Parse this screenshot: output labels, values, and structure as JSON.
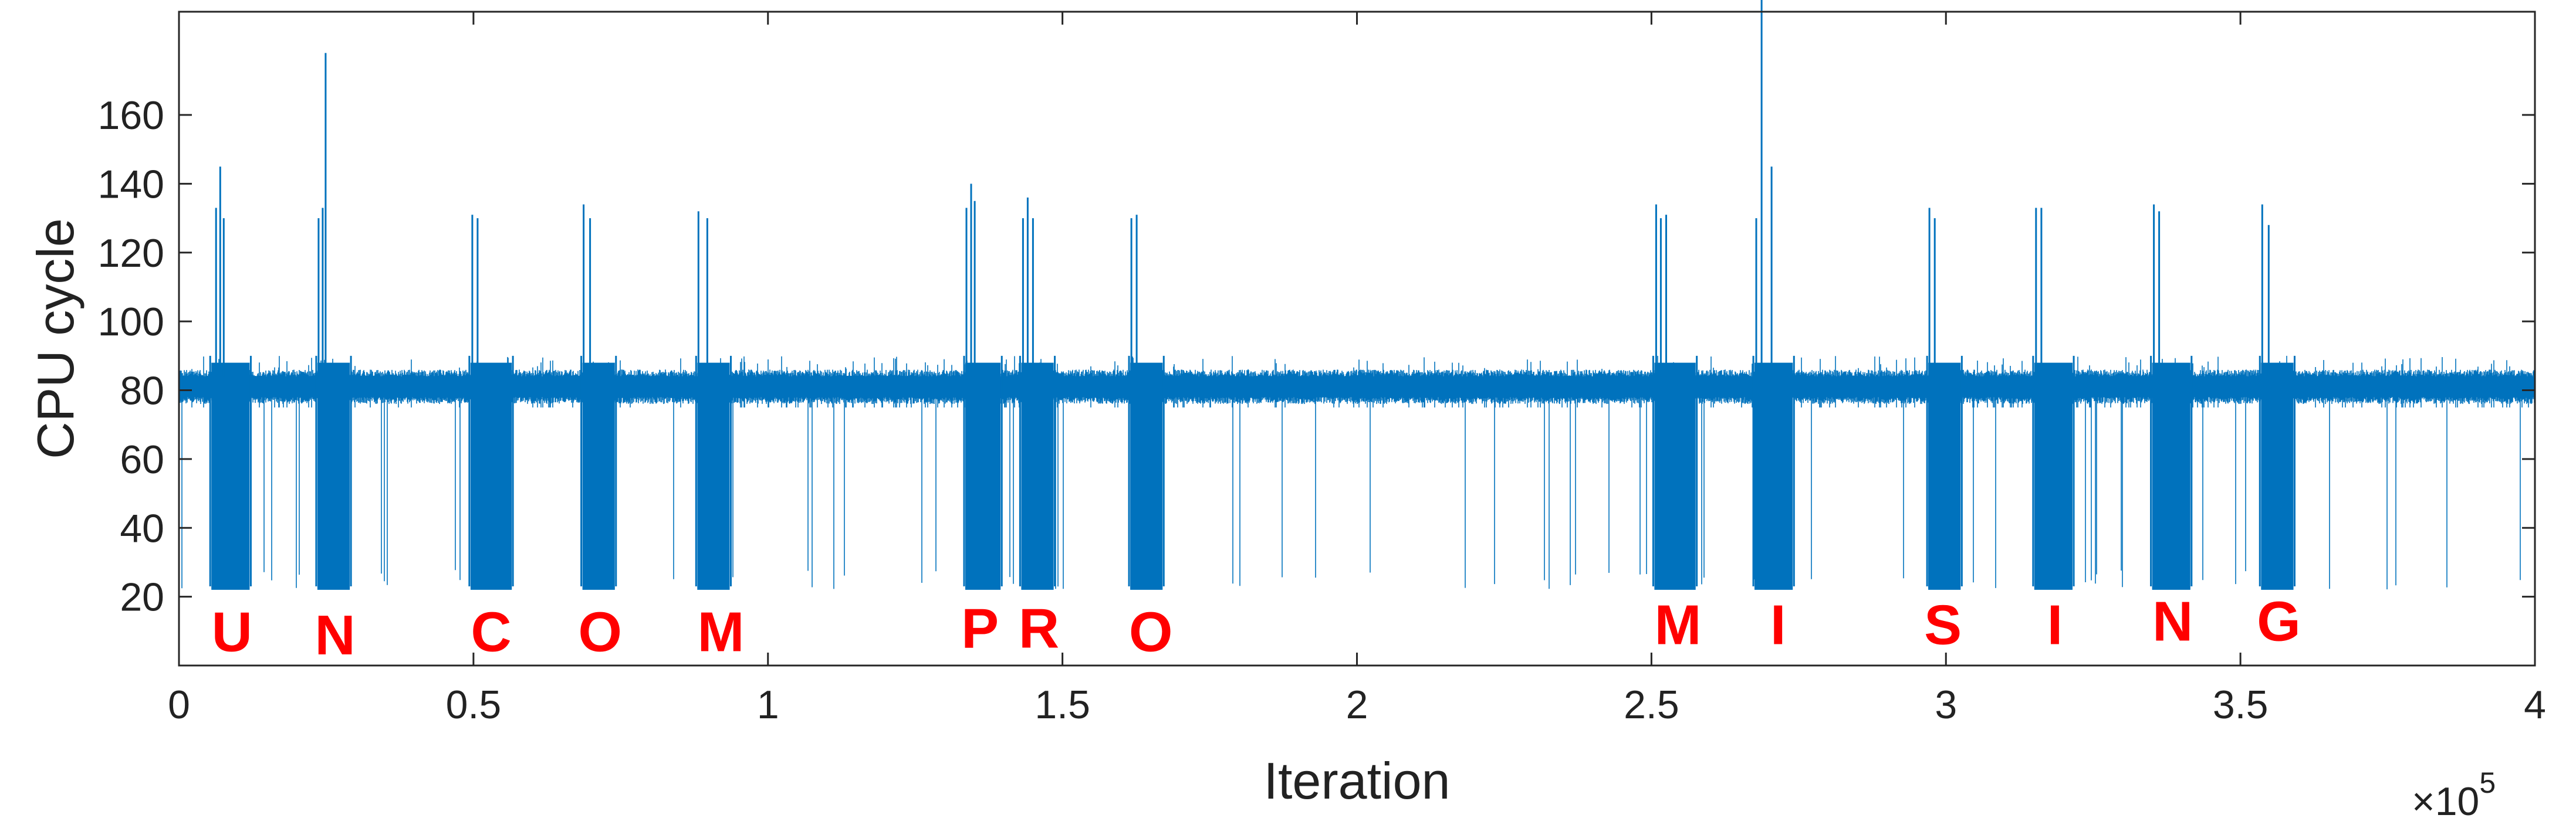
{
  "chart_data": {
    "type": "line",
    "title": "",
    "xlabel": "Iteration",
    "ylabel": "CPU cycle",
    "x_multiplier_label": "×10",
    "x_multiplier_exponent": "5",
    "xlim": [
      0,
      400000
    ],
    "ylim": [
      0,
      190
    ],
    "xticks": [
      0,
      50000,
      100000,
      150000,
      200000,
      250000,
      300000,
      350000,
      400000
    ],
    "xtick_labels": [
      "0",
      "0.5",
      "1",
      "1.5",
      "2",
      "2.5",
      "3",
      "3.5",
      "4"
    ],
    "yticks": [
      20,
      40,
      60,
      80,
      100,
      120,
      140,
      160
    ],
    "ytick_labels": [
      "20",
      "40",
      "60",
      "80",
      "100",
      "120",
      "140",
      "160"
    ],
    "grid": false,
    "line_color": "#0072BD",
    "annotation_color": "#FF0000",
    "baseline_range": [
      78,
      84
    ],
    "noise_band": [
      75,
      90
    ],
    "bursts": [
      {
        "start": 5500,
        "end": 12000,
        "low": 22,
        "high": 90
      },
      {
        "start": 23500,
        "end": 29000,
        "low": 22,
        "high": 90
      },
      {
        "start": 49500,
        "end": 56500,
        "low": 22,
        "high": 90
      },
      {
        "start": 68500,
        "end": 74000,
        "low": 22,
        "high": 90
      },
      {
        "start": 88000,
        "end": 93500,
        "low": 22,
        "high": 90
      },
      {
        "start": 133500,
        "end": 139500,
        "low": 22,
        "high": 90
      },
      {
        "start": 143000,
        "end": 148500,
        "low": 22,
        "high": 90
      },
      {
        "start": 161500,
        "end": 167000,
        "low": 22,
        "high": 90
      },
      {
        "start": 250500,
        "end": 257500,
        "low": 22,
        "high": 90
      },
      {
        "start": 267500,
        "end": 274000,
        "low": 22,
        "high": 90
      },
      {
        "start": 297000,
        "end": 302500,
        "low": 22,
        "high": 90
      },
      {
        "start": 315000,
        "end": 321500,
        "low": 22,
        "high": 90
      },
      {
        "start": 335000,
        "end": 341500,
        "low": 22,
        "high": 90
      },
      {
        "start": 353500,
        "end": 359000,
        "low": 22,
        "high": 90
      }
    ],
    "spikes": [
      {
        "x": 6300,
        "y": 133
      },
      {
        "x": 7000,
        "y": 145
      },
      {
        "x": 7600,
        "y": 130
      },
      {
        "x": 23700,
        "y": 130
      },
      {
        "x": 24400,
        "y": 133
      },
      {
        "x": 24900,
        "y": 178
      },
      {
        "x": 49800,
        "y": 131
      },
      {
        "x": 50700,
        "y": 130
      },
      {
        "x": 68700,
        "y": 134
      },
      {
        "x": 69800,
        "y": 130
      },
      {
        "x": 88200,
        "y": 132
      },
      {
        "x": 89700,
        "y": 130
      },
      {
        "x": 133700,
        "y": 133
      },
      {
        "x": 134500,
        "y": 140
      },
      {
        "x": 135100,
        "y": 135
      },
      {
        "x": 143300,
        "y": 130
      },
      {
        "x": 144100,
        "y": 136
      },
      {
        "x": 145000,
        "y": 130
      },
      {
        "x": 161700,
        "y": 130
      },
      {
        "x": 162600,
        "y": 131
      },
      {
        "x": 250800,
        "y": 134
      },
      {
        "x": 251600,
        "y": 130
      },
      {
        "x": 252500,
        "y": 131
      },
      {
        "x": 267800,
        "y": 130
      },
      {
        "x": 268700,
        "y": 197
      },
      {
        "x": 270400,
        "y": 145
      },
      {
        "x": 297200,
        "y": 133
      },
      {
        "x": 298100,
        "y": 130
      },
      {
        "x": 315300,
        "y": 133
      },
      {
        "x": 316200,
        "y": 133
      },
      {
        "x": 335300,
        "y": 134
      },
      {
        "x": 336200,
        "y": 132
      },
      {
        "x": 353700,
        "y": 134
      },
      {
        "x": 354800,
        "y": 128
      }
    ],
    "annotations": [
      {
        "text": "U",
        "x": 9000,
        "y": 10
      },
      {
        "text": "N",
        "x": 26500,
        "y": 9
      },
      {
        "text": "C",
        "x": 53000,
        "y": 10
      },
      {
        "text": "O",
        "x": 71500,
        "y": 10
      },
      {
        "text": "M",
        "x": 92000,
        "y": 10
      },
      {
        "text": "P",
        "x": 136000,
        "y": 11
      },
      {
        "text": "R",
        "x": 146000,
        "y": 11
      },
      {
        "text": "O",
        "x": 165000,
        "y": 10
      },
      {
        "text": "M",
        "x": 254500,
        "y": 12
      },
      {
        "text": "I",
        "x": 271500,
        "y": 12
      },
      {
        "text": "S",
        "x": 299500,
        "y": 12
      },
      {
        "text": "I",
        "x": 318500,
        "y": 12
      },
      {
        "text": "N",
        "x": 338500,
        "y": 13
      },
      {
        "text": "G",
        "x": 356500,
        "y": 13
      }
    ]
  }
}
